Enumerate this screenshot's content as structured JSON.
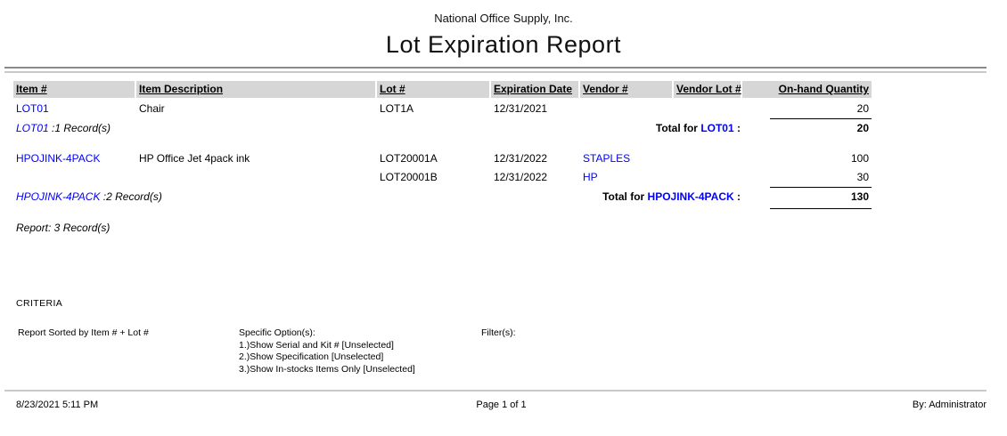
{
  "page": {
    "company": "National Office Supply, Inc.",
    "title": "Lot Expiration Report"
  },
  "table": {
    "headers": {
      "item": "Item #",
      "description": "Item Description",
      "lot": "Lot #",
      "expiration": "Expiration Date",
      "vendor": "Vendor #",
      "vendor_lot": "Vendor Lot #",
      "qty": "On-hand Quantity"
    },
    "rows": [
      {
        "item": "LOT01",
        "description": "Chair",
        "lot": "LOT1A",
        "expiration": "12/31/2021",
        "vendor": "",
        "vendor_lot": "",
        "qty": "20"
      },
      {
        "item": "HPOJINK-4PACK",
        "description": "HP Office Jet 4pack ink",
        "lot": "LOT20001A",
        "expiration": "12/31/2022",
        "vendor": "STAPLES",
        "vendor_lot": "",
        "qty": "100"
      },
      {
        "item": "",
        "description": "",
        "lot": "LOT20001B",
        "expiration": "12/31/2022",
        "vendor": "HP",
        "vendor_lot": "",
        "qty": "30"
      }
    ],
    "group_footers": [
      {
        "item": "LOT01",
        "records": " :1 Record(s)",
        "total_label": "Total for ",
        "total_item": "LOT01",
        "total_suffix": " :",
        "total": "20"
      },
      {
        "item": "HPOJINK-4PACK",
        "records": " :2 Record(s)",
        "total_label": "Total for ",
        "total_item": "HPOJINK-4PACK",
        "total_suffix": " :",
        "total": "130"
      }
    ],
    "summary": "Report: 3 Record(s)"
  },
  "criteria": {
    "heading": "CRITERIA",
    "sorted_by": "Report Sorted by Item # + Lot #",
    "options_label": "Specific Option(s):",
    "options": [
      "1.)Show Serial and Kit # [Unselected]",
      "2.)Show Specification [Unselected]",
      "3.)Show In-stocks Items Only [Unselected]"
    ],
    "filters_label": "Filter(s):"
  },
  "footer": {
    "datetime": "8/23/2021 5:11 PM",
    "page": "Page 1 of 1",
    "by": "By: Administrator"
  },
  "colors": {
    "link": "#0000ff",
    "header_bg": "#d6d6d6",
    "rule_dark": "#8a8a8a",
    "rule_light": "#c9c9c9"
  }
}
